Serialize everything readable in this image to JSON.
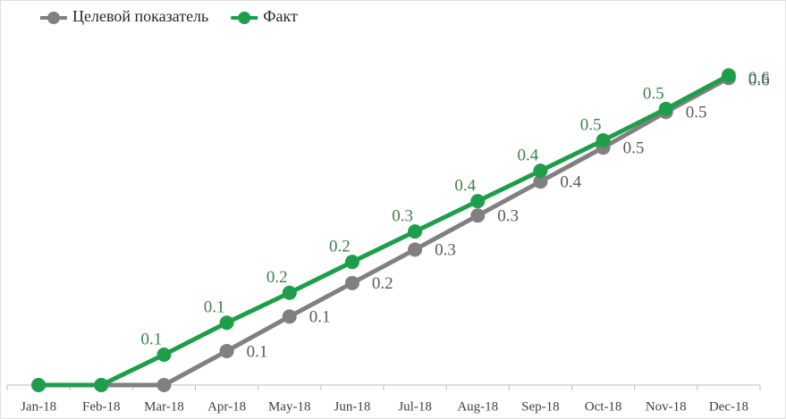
{
  "chart_data": {
    "type": "line",
    "categories": [
      "Jan-18",
      "Feb-18",
      "Mar-18",
      "Apr-18",
      "May-18",
      "Jun-18",
      "Jul-18",
      "Aug-18",
      "Sep-18",
      "Oct-18",
      "Nov-18",
      "Dec-18"
    ],
    "series": [
      {
        "name": "Целевой показатель",
        "color": "#808080",
        "values": [
          0,
          0,
          0,
          0.066,
          0.133,
          0.198,
          0.263,
          0.329,
          0.395,
          0.461,
          0.53,
          0.596
        ],
        "value_labels": [
          null,
          null,
          null,
          "0.1",
          "0.1",
          "0.2",
          "0.3",
          "0.3",
          "0.4",
          "0.5",
          "0.5",
          "0.6"
        ]
      },
      {
        "name": "Факт",
        "color": "#1e9e4a",
        "values": [
          0,
          0,
          0.059,
          0.121,
          0.179,
          0.239,
          0.298,
          0.357,
          0.416,
          0.475,
          0.536,
          0.601
        ],
        "value_labels": [
          null,
          null,
          "0.1",
          "0.1",
          "0.2",
          "0.2",
          "0.3",
          "0.4",
          "0.4",
          "0.5",
          "0.5",
          "0.6"
        ]
      }
    ],
    "ylim": [
      0,
      0.6
    ],
    "legend": "top-left"
  }
}
